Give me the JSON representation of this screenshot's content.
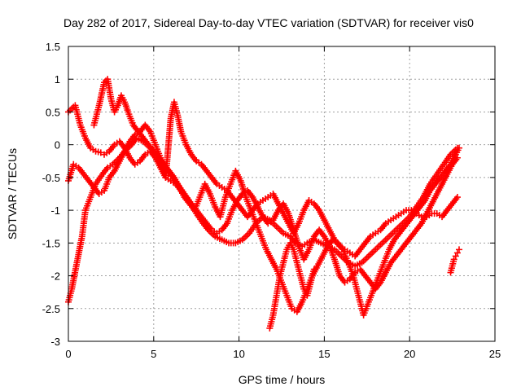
{
  "chart_data": {
    "type": "scatter",
    "title": "Day 282 of 2017, Sidereal Day-to-day VTEC variation (SDTVAR) for receiver vis0",
    "xlabel": "GPS time / hours",
    "ylabel": "SDTVAR / TECUs",
    "xlim": [
      0,
      25
    ],
    "ylim": [
      -3,
      1.5
    ],
    "xticks": [
      0,
      5,
      10,
      15,
      20,
      25
    ],
    "yticks": [
      -3,
      -2.5,
      -2,
      -1.5,
      -1,
      -0.5,
      0,
      0.5,
      1,
      1.5
    ],
    "grid": true,
    "marker": "+",
    "color": "#ff0000",
    "series": [
      {
        "x": [
          0.0,
          0.2,
          0.5,
          0.8,
          1.0,
          1.3,
          1.6,
          2.0,
          2.3,
          2.6,
          3.0,
          3.3,
          3.7,
          4.0,
          4.4,
          4.8,
          5.2,
          5.6,
          6.0,
          6.4,
          6.8,
          7.2,
          7.5,
          7.9,
          8.2,
          8.6,
          9.0,
          9.4,
          9.8,
          10.2,
          10.6,
          11.0,
          11.4,
          11.8,
          12.2,
          12.6,
          13.0,
          13.3,
          13.7,
          14.0,
          14.4,
          14.8,
          15.2,
          15.6,
          16.0,
          16.4,
          16.8,
          17.2,
          17.6,
          18.0,
          18.4,
          18.8,
          19.2,
          19.6,
          20.0,
          20.4,
          20.8,
          21.2,
          21.6,
          22.0,
          22.4,
          22.8
        ],
        "y": [
          -2.4,
          -2.2,
          -1.8,
          -1.4,
          -1.0,
          -0.8,
          -0.6,
          -0.45,
          -0.35,
          -0.3,
          -0.2,
          -0.1,
          0.0,
          0.1,
          0.05,
          -0.05,
          -0.15,
          -0.3,
          -0.45,
          -0.6,
          -0.75,
          -0.9,
          -1.05,
          -1.2,
          -1.3,
          -1.4,
          -1.45,
          -1.5,
          -1.5,
          -1.45,
          -1.35,
          -1.2,
          -1.1,
          -1.15,
          -1.25,
          -1.35,
          -1.4,
          -1.5,
          -1.55,
          -1.5,
          -1.45,
          -1.5,
          -1.55,
          -1.6,
          -1.7,
          -1.8,
          -1.85,
          -1.8,
          -1.7,
          -1.6,
          -1.5,
          -1.4,
          -1.3,
          -1.2,
          -1.1,
          -0.95,
          -0.8,
          -0.6,
          -0.45,
          -0.3,
          -0.15,
          -0.05
        ]
      },
      {
        "x": [
          0.0,
          0.2,
          0.4,
          0.7,
          1.0,
          1.3,
          1.6,
          1.9,
          2.1,
          2.4,
          2.7,
          3.0,
          3.3,
          3.6,
          3.9,
          4.2,
          4.5,
          4.8,
          5.1,
          5.4,
          5.7,
          6.0,
          6.3,
          6.6,
          6.9,
          7.2,
          7.5,
          7.8,
          8.1,
          8.4,
          8.7,
          9.0,
          9.3,
          9.6,
          9.9,
          10.2,
          10.5,
          10.8,
          11.1,
          11.4,
          11.7,
          12.0,
          12.3,
          12.6,
          12.9,
          13.2,
          13.5,
          13.8,
          14.1,
          14.4,
          14.7,
          15.0,
          15.3,
          15.6,
          15.9,
          16.2,
          16.5,
          16.8,
          17.1,
          17.4,
          17.7,
          18.0,
          18.3,
          18.6,
          18.9,
          19.2,
          19.5,
          19.8,
          20.1,
          20.4,
          20.7,
          21.0,
          21.3,
          21.6,
          21.9,
          22.2,
          22.5,
          22.8
        ],
        "y": [
          0.5,
          0.55,
          0.6,
          0.3,
          0.1,
          -0.05,
          -0.1,
          -0.12,
          -0.15,
          -0.1,
          0.0,
          0.05,
          -0.05,
          -0.2,
          -0.3,
          -0.25,
          -0.15,
          -0.1,
          -0.2,
          -0.35,
          -0.5,
          -0.55,
          -0.6,
          -0.7,
          -0.8,
          -0.9,
          -1.0,
          -1.1,
          -1.2,
          -1.3,
          -1.35,
          -1.3,
          -1.2,
          -1.0,
          -0.85,
          -0.75,
          -0.7,
          -0.8,
          -0.95,
          -1.1,
          -1.2,
          -1.15,
          -1.0,
          -0.9,
          -1.05,
          -1.3,
          -1.55,
          -1.75,
          -1.6,
          -1.4,
          -1.3,
          -1.4,
          -1.55,
          -1.75,
          -2.0,
          -2.1,
          -2.05,
          -1.95,
          -1.9,
          -2.0,
          -2.1,
          -2.2,
          -2.1,
          -1.95,
          -1.8,
          -1.7,
          -1.6,
          -1.5,
          -1.4,
          -1.3,
          -1.2,
          -1.05,
          -0.9,
          -0.75,
          -0.6,
          -0.45,
          -0.3,
          -0.2
        ]
      },
      {
        "x": [
          1.5,
          1.8,
          2.1,
          2.3,
          2.5,
          2.7,
          2.9,
          3.1,
          3.3,
          3.5,
          3.8,
          4.1,
          4.4,
          4.7,
          5.0,
          5.3,
          5.6,
          5.9,
          6.2,
          6.5,
          6.8,
          7.1,
          7.4,
          7.7,
          8.0,
          8.3,
          8.6,
          8.9,
          9.2,
          9.5,
          9.8,
          10.1,
          10.4,
          10.7,
          11.0,
          11.3,
          11.6,
          11.9,
          12.2,
          12.5,
          12.8,
          13.1,
          13.4,
          13.7,
          14.0,
          14.3,
          14.6,
          14.9,
          15.2,
          15.5,
          15.8,
          16.1,
          16.4,
          16.7,
          17.0,
          17.3,
          17.6,
          17.9,
          18.2,
          18.5,
          18.8,
          19.1,
          19.4,
          19.7,
          20.0,
          20.3,
          20.6,
          20.9,
          21.2,
          21.5,
          21.8,
          22.1,
          22.4,
          22.7,
          22.9
        ],
        "y": [
          0.3,
          0.6,
          0.95,
          1.0,
          0.7,
          0.5,
          0.6,
          0.75,
          0.65,
          0.5,
          0.3,
          0.2,
          0.1,
          0.0,
          -0.1,
          -0.2,
          -0.3,
          -0.4,
          -0.5,
          -0.65,
          -0.8,
          -0.9,
          -1.0,
          -0.8,
          -0.6,
          -0.75,
          -0.95,
          -1.1,
          -0.8,
          -0.6,
          -0.4,
          -0.55,
          -0.8,
          -1.0,
          -1.2,
          -1.4,
          -1.6,
          -1.75,
          -1.9,
          -2.1,
          -2.3,
          -2.5,
          -2.55,
          -2.4,
          -2.2,
          -2.0,
          -1.85,
          -1.7,
          -1.55,
          -1.45,
          -1.5,
          -1.6,
          -1.8,
          -2.0,
          -2.3,
          -2.6,
          -2.4,
          -2.2,
          -2.0,
          -1.8,
          -1.6,
          -1.45,
          -1.35,
          -1.25,
          -1.15,
          -1.05,
          -0.95,
          -0.85,
          -0.7,
          -0.6,
          -0.5,
          -0.4,
          -0.3,
          -0.15,
          -0.05
        ]
      },
      {
        "x": [
          0.0,
          0.3,
          0.6,
          0.9,
          1.2,
          1.5,
          1.8,
          2.1,
          2.4,
          2.7,
          3.0,
          3.3,
          3.6,
          3.9,
          4.2,
          4.5,
          4.8,
          5.1,
          5.4,
          5.7,
          6.0,
          6.2,
          6.4,
          6.6,
          6.9,
          7.2,
          7.5,
          7.8,
          8.1,
          8.4,
          8.7,
          9.0,
          9.3,
          9.6,
          9.9,
          10.2,
          10.5,
          10.8,
          11.1,
          11.4,
          11.7,
          12.0,
          12.3,
          12.6,
          12.9,
          13.2,
          13.5,
          13.8,
          14.1,
          14.4,
          14.7,
          15.0,
          15.3,
          15.6,
          15.9,
          16.2,
          16.5,
          16.8,
          17.1,
          17.4,
          17.7,
          18.0,
          18.3,
          18.6,
          18.9,
          19.2,
          19.5,
          19.8,
          20.1,
          20.4,
          20.7,
          21.0,
          21.3,
          21.6,
          21.9,
          22.2,
          22.5,
          22.8
        ],
        "y": [
          -0.55,
          -0.3,
          -0.35,
          -0.45,
          -0.55,
          -0.65,
          -0.75,
          -0.7,
          -0.5,
          -0.4,
          -0.25,
          -0.1,
          0.05,
          0.15,
          0.2,
          0.3,
          0.2,
          0.0,
          -0.2,
          -0.5,
          0.4,
          0.65,
          0.45,
          0.2,
          0.0,
          -0.15,
          -0.25,
          -0.3,
          -0.4,
          -0.5,
          -0.6,
          -0.65,
          -0.7,
          -0.8,
          -0.9,
          -1.0,
          -1.1,
          -1.0,
          -0.9,
          -0.85,
          -0.8,
          -0.75,
          -0.9,
          -1.05,
          -1.2,
          -1.35,
          -1.2,
          -1.0,
          -0.85,
          -0.9,
          -1.0,
          -1.15,
          -1.3,
          -1.45,
          -1.55,
          -1.6,
          -1.65,
          -1.7,
          -1.6,
          -1.5,
          -1.4,
          -1.35,
          -1.3,
          -1.2,
          -1.15,
          -1.1,
          -1.05,
          -1.0,
          -1.0,
          -1.05,
          -1.1,
          -1.1,
          -1.05,
          -1.05,
          -1.1,
          -1.0,
          -0.9,
          -0.8
        ]
      },
      {
        "x": [
          11.8,
          12.0,
          12.2,
          12.4,
          12.6,
          12.8,
          13.0,
          13.2,
          13.4,
          13.6,
          13.8,
          14.0,
          14.2,
          14.4
        ],
        "y": [
          -2.8,
          -2.6,
          -2.3,
          -2.0,
          -1.8,
          -1.6,
          -1.5,
          -1.6,
          -1.8,
          -2.0,
          -2.2,
          -2.3,
          -2.1,
          -1.9
        ]
      },
      {
        "x": [
          22.4,
          22.5,
          22.6,
          22.7,
          22.8,
          22.9
        ],
        "y": [
          -1.95,
          -1.85,
          -1.75,
          -1.7,
          -1.65,
          -1.6
        ]
      }
    ]
  }
}
